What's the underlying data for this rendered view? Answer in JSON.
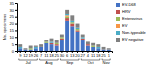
{
  "chart_data": {
    "type": "bar",
    "stacked": true,
    "ylabel": "No. specimens",
    "categories": [
      "9",
      "12",
      "19",
      "26",
      "7",
      "11",
      "18",
      "25",
      "30",
      "6",
      "13",
      "20",
      "27",
      "4",
      "11",
      "18",
      "25",
      "1"
    ],
    "x_groups": [
      "Jul",
      "Jul",
      "Jul",
      "Jul",
      "Aug",
      "Aug",
      "Aug",
      "Aug",
      "Sep",
      "Sep",
      "Sep",
      "Sep",
      "Oct",
      "Oct",
      "Oct",
      "Oct",
      "Nov",
      "Nov"
    ],
    "series": [
      {
        "name": "EV-D68",
        "color": "#4472c4",
        "values": [
          2,
          1,
          1,
          2,
          3,
          6,
          5,
          4,
          8,
          22,
          18,
          14,
          8,
          4,
          3,
          2,
          1,
          1
        ]
      },
      {
        "name": "HRV",
        "color": "#c0504d",
        "values": [
          0,
          0,
          0,
          0,
          0,
          0,
          1,
          1,
          1,
          2,
          2,
          1,
          1,
          1,
          0,
          0,
          0,
          0
        ]
      },
      {
        "name": "Enterovirus",
        "color": "#9bbb59",
        "values": [
          0,
          0,
          1,
          0,
          0,
          1,
          0,
          1,
          1,
          1,
          1,
          1,
          0,
          0,
          1,
          0,
          0,
          0
        ]
      },
      {
        "name": "EV",
        "color": "#f79646",
        "values": [
          0,
          0,
          0,
          0,
          0,
          0,
          0,
          0,
          0,
          1,
          0,
          0,
          0,
          0,
          0,
          0,
          0,
          0
        ]
      },
      {
        "name": "Non-typeable",
        "color": "#4bacc6",
        "values": [
          1,
          0,
          0,
          1,
          0,
          0,
          1,
          0,
          0,
          1,
          1,
          1,
          1,
          0,
          0,
          1,
          0,
          0
        ]
      },
      {
        "name": "EV negative",
        "color": "#808080",
        "values": [
          2,
          1,
          2,
          1,
          2,
          1,
          2,
          2,
          2,
          3,
          4,
          3,
          2,
          2,
          2,
          2,
          2,
          1
        ]
      }
    ],
    "ylim": [
      0,
      35
    ],
    "yticks": [
      0,
      5,
      10,
      15,
      20,
      25,
      30,
      35
    ],
    "legend": "upper right"
  }
}
